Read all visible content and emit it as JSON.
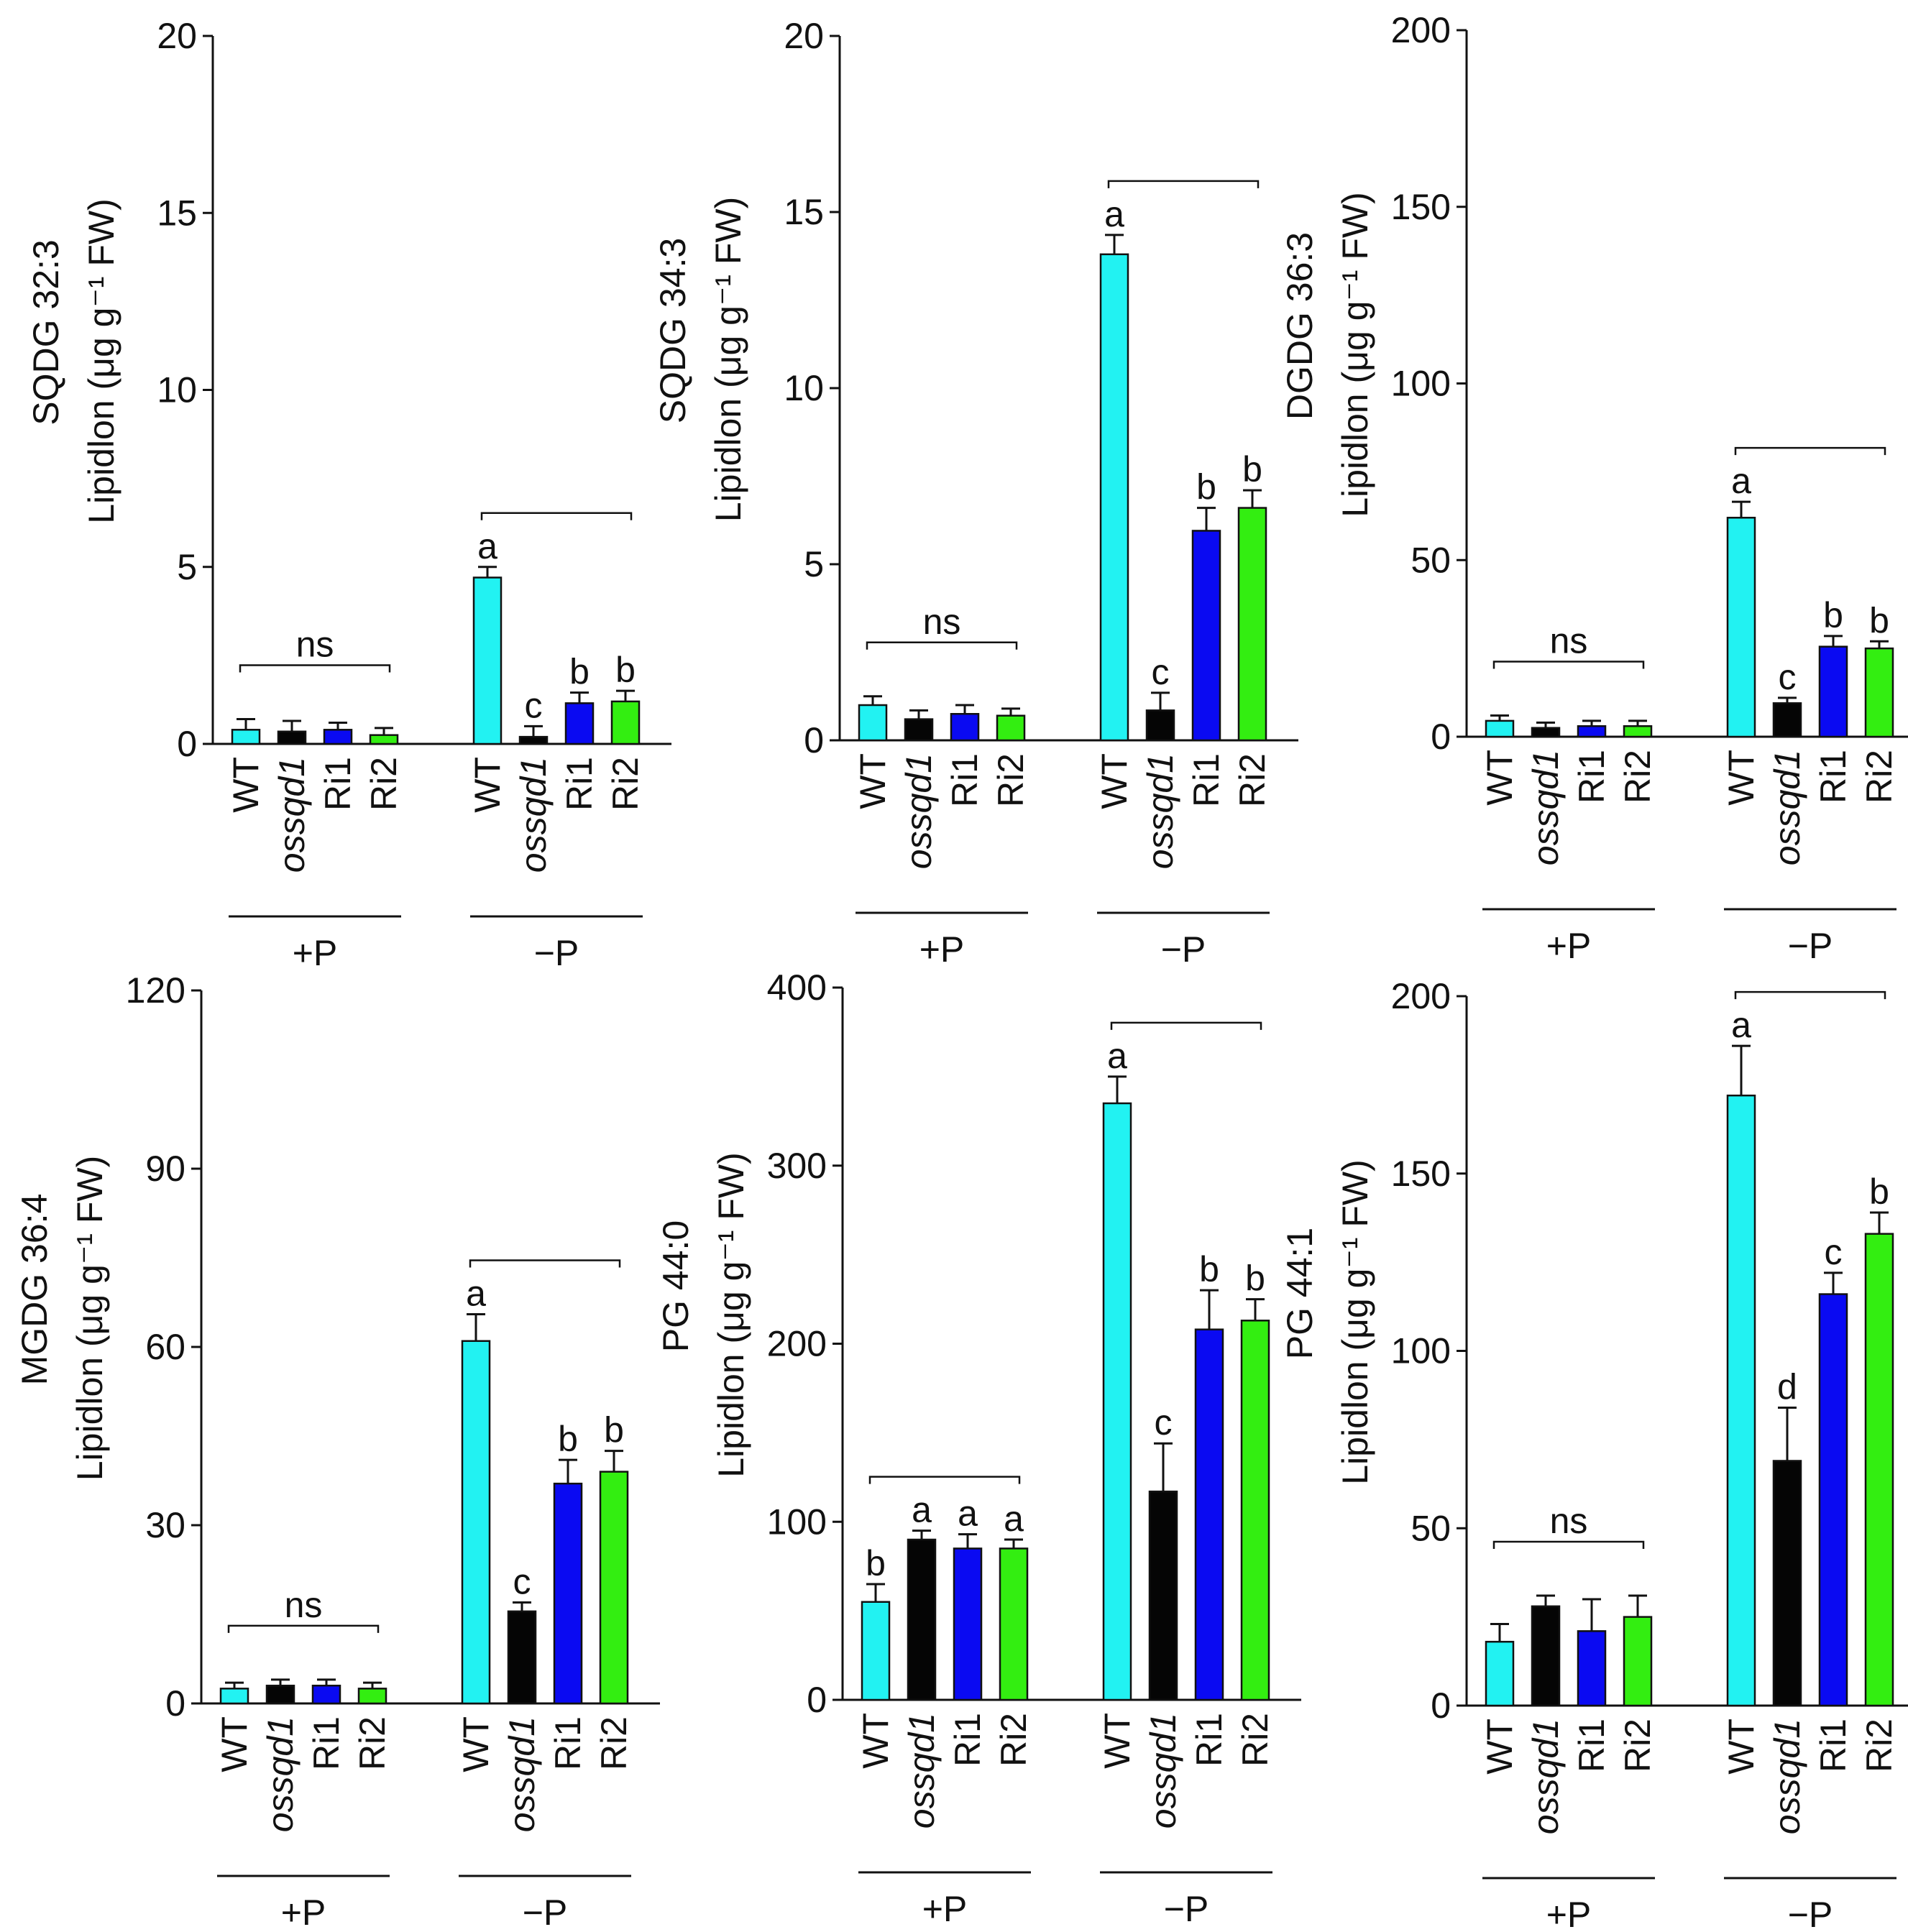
{
  "colors": {
    "WT": "#22f2f2",
    "ossqd1": "#050505",
    "Ri1": "#0a0af2",
    "Ri2": "#33ee11",
    "axis": "#111111"
  },
  "chart_data": [
    {
      "type": "bar",
      "ylabel_top": "SQDG 32:3",
      "ylabel_bottom": "Lipidlon (μg g⁻¹ FW)",
      "ylim": [
        0,
        20
      ],
      "yticks": [
        "0",
        "5",
        "10",
        "15",
        "20"
      ],
      "groups": [
        {
          "label": "+P",
          "categories": [
            "WT",
            "ossqd1",
            "Ri1",
            "Ri2"
          ],
          "values": [
            0.4,
            0.35,
            0.4,
            0.25
          ],
          "errors": [
            0.3,
            0.3,
            0.2,
            0.2
          ],
          "letters": [
            "",
            "",
            "",
            ""
          ],
          "bracket_label": "ns"
        },
        {
          "label": "−P",
          "categories": [
            "WT",
            "ossqd1",
            "Ri1",
            "Ri2"
          ],
          "values": [
            4.7,
            0.2,
            1.15,
            1.2
          ],
          "errors": [
            0.3,
            0.3,
            0.3,
            0.3
          ],
          "letters": [
            "a",
            "c",
            "b",
            "b"
          ],
          "bracket_label": ""
        }
      ]
    },
    {
      "type": "bar",
      "ylabel_top": "SQDG  34:3",
      "ylabel_bottom": "Lipidlon (μg g⁻¹ FW)",
      "ylim": [
        0,
        20
      ],
      "yticks": [
        "0",
        "5",
        "10",
        "15",
        "20"
      ],
      "groups": [
        {
          "label": "+P",
          "categories": [
            "WT",
            "ossqd1",
            "Ri1",
            "Ri2"
          ],
          "values": [
            1.0,
            0.6,
            0.75,
            0.7
          ],
          "errors": [
            0.25,
            0.25,
            0.25,
            0.2
          ],
          "letters": [
            "",
            "",
            "",
            ""
          ],
          "bracket_label": "ns"
        },
        {
          "label": "−P",
          "categories": [
            "WT",
            "ossqd1",
            "Ri1",
            "Ri2"
          ],
          "values": [
            13.8,
            0.85,
            5.95,
            6.6
          ],
          "errors": [
            0.55,
            0.5,
            0.65,
            0.5
          ],
          "letters": [
            "a",
            "c",
            "b",
            "b"
          ],
          "bracket_label": ""
        }
      ]
    },
    {
      "type": "bar",
      "ylabel_top": "DGDG 36:3",
      "ylabel_bottom": "Lipidlon (μg g⁻¹ FW)",
      "ylim": [
        0,
        200
      ],
      "yticks": [
        "0",
        "50",
        "100",
        "150",
        "200"
      ],
      "groups": [
        {
          "label": "+P",
          "categories": [
            "WT",
            "ossqd1",
            "Ri1",
            "Ri2"
          ],
          "values": [
            4.5,
            2.5,
            3.0,
            3.0
          ],
          "errors": [
            1.5,
            1.5,
            1.5,
            1.5
          ],
          "letters": [
            "",
            "",
            "",
            ""
          ],
          "bracket_label": "ns"
        },
        {
          "label": "−P",
          "categories": [
            "WT",
            "ossqd1",
            "Ri1",
            "Ri2"
          ],
          "values": [
            62,
            9.5,
            25.5,
            25
          ],
          "errors": [
            4.5,
            1.5,
            3,
            2
          ],
          "letters": [
            "a",
            "c",
            "b",
            "b"
          ],
          "bracket_label": ""
        }
      ]
    },
    {
      "type": "bar",
      "ylabel_top": "MGDG 36:4",
      "ylabel_bottom": "Lipidlon (μg g⁻¹ FW)",
      "ylim": [
        0,
        120
      ],
      "yticks": [
        "0",
        "30",
        "60",
        "90",
        "120"
      ],
      "groups": [
        {
          "label": "+P",
          "categories": [
            "WT",
            "ossqd1",
            "Ri1",
            "Ri2"
          ],
          "values": [
            2.5,
            3.0,
            3.0,
            2.5
          ],
          "errors": [
            1.0,
            1.0,
            1.0,
            1.0
          ],
          "letters": [
            "",
            "",
            "",
            ""
          ],
          "bracket_label": "ns"
        },
        {
          "label": "−P",
          "categories": [
            "WT",
            "ossqd1",
            "Ri1",
            "Ri2"
          ],
          "values": [
            61,
            15.5,
            37,
            39
          ],
          "errors": [
            4.5,
            1.5,
            4,
            3.5
          ],
          "letters": [
            "a",
            "c",
            "b",
            "b"
          ],
          "bracket_label": ""
        }
      ]
    },
    {
      "type": "bar",
      "ylabel_top": "PG 44:0",
      "ylabel_bottom": "Lipidlon (μg g⁻¹ FW)",
      "ylim": [
        0,
        400
      ],
      "yticks": [
        "0",
        "100",
        "200",
        "300",
        "400"
      ],
      "groups": [
        {
          "label": "+P",
          "categories": [
            "WT",
            "ossqd1",
            "Ri1",
            "Ri2"
          ],
          "values": [
            55,
            90,
            85,
            85
          ],
          "errors": [
            10,
            5,
            8,
            5
          ],
          "letters": [
            "b",
            "a",
            "a",
            "a"
          ],
          "bracket_label": ""
        },
        {
          "label": "−P",
          "categories": [
            "WT",
            "ossqd1",
            "Ri1",
            "Ri2"
          ],
          "values": [
            335,
            117,
            208,
            213
          ],
          "errors": [
            15,
            27,
            22,
            12
          ],
          "letters": [
            "a",
            "c",
            "b",
            "b"
          ],
          "bracket_label": ""
        }
      ]
    },
    {
      "type": "bar",
      "ylabel_top": "PG 44:1",
      "ylabel_bottom": "Lipidlon (μg g⁻¹ FW)",
      "ylim": [
        0,
        200
      ],
      "yticks": [
        "0",
        "50",
        "100",
        "150",
        "200"
      ],
      "groups": [
        {
          "label": "+P",
          "categories": [
            "WT",
            "ossqd1",
            "Ri1",
            "Ri2"
          ],
          "values": [
            18,
            28,
            21,
            25
          ],
          "errors": [
            5,
            3,
            9,
            6
          ],
          "letters": [
            "",
            "",
            "",
            ""
          ],
          "bracket_label": "ns"
        },
        {
          "label": "−P",
          "categories": [
            "WT",
            "ossqd1",
            "Ri1",
            "Ri2"
          ],
          "values": [
            172,
            69,
            116,
            133
          ],
          "errors": [
            14,
            15,
            6,
            6
          ],
          "letters": [
            "a",
            "d",
            "c",
            "b"
          ],
          "bracket_label": ""
        }
      ]
    }
  ]
}
